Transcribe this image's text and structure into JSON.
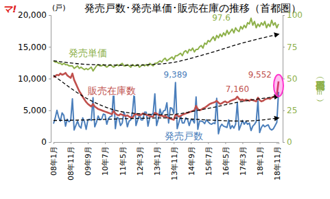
{
  "chart_data": {
    "type": "line",
    "title": "発売戸数･発売単価･販売在庫の推移（首都圏）",
    "logo": "マ!",
    "y_label": "(戸)",
    "y2_label": "発売単価（万円／㎡）",
    "grid": false,
    "categories": [
      "08年1月",
      null,
      null,
      null,
      null,
      null,
      null,
      null,
      null,
      null,
      "08年11月",
      null,
      null,
      null,
      null,
      null,
      null,
      null,
      null,
      null,
      "09年9月",
      null,
      null,
      null,
      null,
      null,
      null,
      null,
      null,
      null,
      "10年7月",
      null,
      null,
      null,
      null,
      null,
      null,
      null,
      null,
      null,
      "11年5月",
      null,
      null,
      null,
      null,
      null,
      null,
      null,
      null,
      null,
      "12年3月",
      null,
      null,
      null,
      null,
      null,
      null,
      null,
      null,
      null,
      "13年1月",
      null,
      null,
      null,
      null,
      null,
      null,
      null,
      null,
      null,
      "13年11月",
      null,
      null,
      null,
      null,
      null,
      null,
      null,
      null,
      null,
      "14年9月",
      null,
      null,
      null,
      null,
      null,
      null,
      null,
      null,
      null,
      "15年7月",
      null,
      null,
      null,
      null,
      null,
      null,
      null,
      null,
      null,
      "16年5月",
      null,
      null,
      null,
      null,
      null,
      null,
      null,
      null,
      null,
      "17年3月",
      null,
      null,
      null,
      null,
      null,
      null,
      null,
      null,
      null,
      "18年1月",
      null,
      null,
      null,
      null,
      null,
      null,
      null,
      null,
      null,
      "18年11月",
      null
    ],
    "ylim": [
      0,
      20000
    ],
    "yticks": [
      0,
      {
        "value": 5000,
        "label": "5,000"
      },
      {
        "value": 10000,
        "label": "10,000"
      },
      {
        "value": 15000,
        "label": "15,000"
      },
      {
        "value": 20000,
        "label": "20,000"
      }
    ],
    "y2lim": [
      0,
      100
    ],
    "y2ticks": [
      0,
      25,
      50,
      75,
      100
    ],
    "series": [
      {
        "name": "発売単価",
        "color": "#8db049",
        "axis": "y2",
        "type": "line",
        "values": [
          64,
          63,
          63,
          62,
          62,
          61,
          62,
          61,
          61,
          60,
          60,
          60,
          58,
          59,
          60,
          58,
          59,
          58,
          57,
          58,
          57,
          58,
          59,
          56,
          58,
          60,
          61,
          60,
          60,
          61,
          60,
          59,
          60,
          61,
          60,
          59,
          60,
          61,
          60,
          61,
          62,
          60,
          60,
          61,
          60,
          59,
          61,
          60,
          60,
          61,
          59,
          60,
          61,
          60,
          61,
          60,
          62,
          61,
          60,
          62,
          62,
          63,
          64,
          63,
          65,
          66,
          64,
          65,
          66,
          67,
          65,
          68,
          68,
          69,
          70,
          68,
          71,
          72,
          70,
          73,
          72,
          74,
          71,
          73,
          73,
          75,
          76,
          74,
          78,
          77,
          80,
          79,
          81,
          83,
          80,
          84,
          82,
          85,
          83,
          86,
          84,
          88,
          85,
          87,
          89,
          86,
          90,
          88,
          87,
          91,
          89,
          92,
          90,
          94,
          93,
          97.6,
          92,
          95,
          90,
          93,
          91,
          94,
          92,
          95,
          90,
          93,
          91,
          96,
          92,
          94,
          90,
          93
        ]
      },
      {
        "name": "販売在庫数",
        "color": "#c0504d",
        "type": "line",
        "values": [
          10200,
          10400,
          10600,
          10500,
          10800,
          10600,
          10700,
          10900,
          10500,
          10300,
          10100,
          10800,
          9800,
          9200,
          8600,
          8000,
          7600,
          7100,
          6700,
          6300,
          6000,
          5800,
          5600,
          6000,
          5600,
          5400,
          5200,
          5100,
          5000,
          4900,
          4800,
          4700,
          4600,
          4500,
          4400,
          4900,
          4500,
          4300,
          4200,
          4400,
          4300,
          4200,
          4100,
          4200,
          4000,
          3900,
          3800,
          4300,
          4400,
          4300,
          4200,
          4300,
          4500,
          4400,
          4300,
          4200,
          4100,
          4000,
          4000,
          4600,
          4500,
          4300,
          4100,
          4200,
          4000,
          4100,
          3900,
          3800,
          3700,
          3600,
          3500,
          4300,
          4200,
          4000,
          4100,
          4300,
          4400,
          4500,
          4600,
          4700,
          4800,
          4900,
          5000,
          5700,
          5200,
          5000,
          5100,
          5300,
          5400,
          5600,
          5800,
          6000,
          6100,
          6200,
          6300,
          6500,
          6200,
          6000,
          6100,
          6300,
          6400,
          6200,
          6300,
          6500,
          6600,
          6700,
          6800,
          7160,
          6800,
          6600,
          6700,
          6500,
          6700,
          6600,
          6500,
          6700,
          6600,
          6500,
          6400,
          7000,
          6600,
          6400,
          6500,
          6700,
          6800,
          6900,
          6800,
          7000,
          7100,
          7300,
          7400,
          9552
        ]
      },
      {
        "name": "発売戸数",
        "color": "#4a7ebb",
        "type": "line",
        "values": [
          2900,
          3800,
          5000,
          3900,
          3300,
          4600,
          4200,
          2500,
          3600,
          3200,
          3400,
          6800,
          1900,
          2600,
          3300,
          2500,
          2200,
          3800,
          3200,
          2000,
          3500,
          3600,
          3400,
          7000,
          2400,
          3100,
          4100,
          3500,
          3600,
          4400,
          4300,
          2800,
          3700,
          4000,
          4100,
          8200,
          2100,
          3900,
          3700,
          2600,
          3000,
          4700,
          3900,
          2400,
          3300,
          3500,
          4800,
          7900,
          2600,
          3500,
          4300,
          3500,
          3500,
          4700,
          4700,
          2500,
          3800,
          4300,
          4500,
          7600,
          2600,
          3600,
          5200,
          4200,
          4900,
          5000,
          6200,
          3000,
          5400,
          5300,
          4500,
          9389,
          2100,
          3100,
          4100,
          3000,
          3000,
          3800,
          3600,
          2600,
          3500,
          3500,
          3000,
          7100,
          2000,
          3300,
          3300,
          3200,
          2900,
          3500,
          3200,
          2900,
          2800,
          3000,
          2900,
          6900,
          1300,
          2400,
          2800,
          2500,
          2400,
          2300,
          3500,
          2100,
          2600,
          2200,
          2800,
          6200,
          1900,
          2600,
          3400,
          2800,
          3200,
          2800,
          3000,
          1800,
          2500,
          2800,
          3200,
          6500,
          1500,
          2300,
          2700,
          2400,
          2600,
          2700,
          2100,
          1900,
          2100,
          2600,
          3100,
          7900
        ]
      },
      {
        "color": "#000000",
        "axis": "y2",
        "type": "line",
        "line_style": "dashed",
        "marker": "arrow",
        "x": [
          0,
          22,
          44,
          66,
          88,
          110,
          131
        ],
        "values": [
          64,
          61,
          60.5,
          62,
          69,
          78,
          85
        ]
      },
      {
        "color": "#000000",
        "type": "line",
        "line_style": "dashed",
        "marker": "arrow",
        "x": [
          0,
          22,
          44,
          66,
          88,
          110,
          131
        ],
        "values": [
          10500,
          6500,
          4600,
          4300,
          5200,
          6400,
          7200
        ]
      },
      {
        "color": "#000000",
        "type": "line",
        "line_style": "dashed",
        "marker": "arrow",
        "x": [
          0,
          22,
          44,
          66,
          88,
          110,
          131
        ],
        "values": [
          3400,
          3500,
          3700,
          3800,
          3500,
          3300,
          3800
        ]
      }
    ],
    "annotations": [
      {
        "text": "97.6",
        "value": 97.6,
        "series": "発売単価"
      },
      {
        "text": "9,389",
        "value": 9389,
        "series": "発売戸数"
      },
      {
        "text": "7,160",
        "value": 7160,
        "series": "販売在庫数"
      },
      {
        "text": "9,552",
        "value": 9552,
        "series": "販売在庫数"
      }
    ]
  }
}
